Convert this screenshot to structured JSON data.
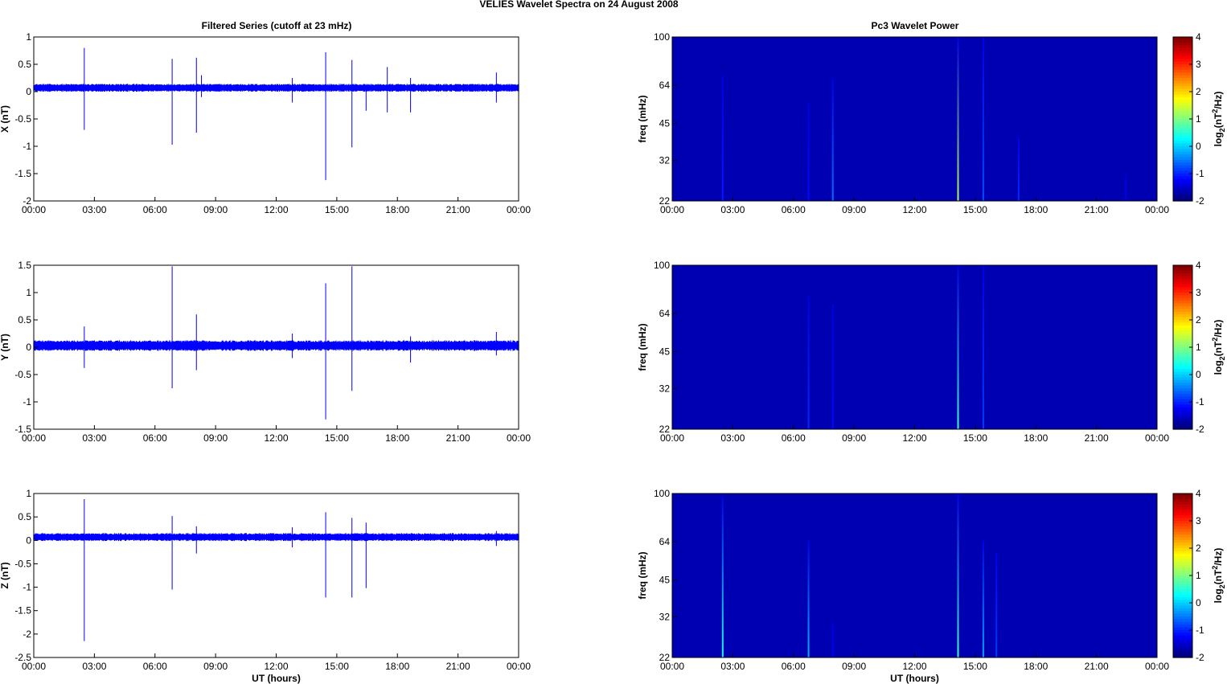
{
  "figure": {
    "title": "VELIES Wavelet Spectra on 24 August    2008",
    "left_title": "Filtered Series (cutoff at 23 mHz)",
    "right_title": "Pc3 Wavelet Power"
  },
  "chart_data": [
    {
      "type": "line",
      "name": "x-series",
      "ylabel": "X (nT)",
      "xlabel": "",
      "xlim": [
        0,
        24
      ],
      "ylim": [
        -2,
        1
      ],
      "yticks": [
        "1",
        "0.5",
        "0",
        "-0.5",
        "-1",
        "-1.5",
        "-2"
      ],
      "yticks_values": [
        1,
        0.5,
        0,
        -0.5,
        -1,
        -1.5,
        -2
      ],
      "xticks": [
        "00:00",
        "03:00",
        "06:00",
        "09:00",
        "12:00",
        "15:00",
        "18:00",
        "21:00",
        "00:00"
      ],
      "baseline": 0.07,
      "noise_amplitude": 0.06,
      "line_color": "#0000ff",
      "spikes": [
        {
          "t": 2.5,
          "max": 0.8,
          "min": -0.7
        },
        {
          "t": 6.85,
          "max": 0.6,
          "min": -0.97
        },
        {
          "t": 8.05,
          "max": 0.62,
          "min": -0.75
        },
        {
          "t": 8.3,
          "max": 0.3,
          "min": -0.1
        },
        {
          "t": 12.8,
          "max": 0.25,
          "min": -0.2
        },
        {
          "t": 14.45,
          "max": 0.72,
          "min": -1.62
        },
        {
          "t": 15.75,
          "max": 0.58,
          "min": -1.02
        },
        {
          "t": 16.45,
          "max": 0.1,
          "min": -0.35
        },
        {
          "t": 17.5,
          "max": 0.45,
          "min": -0.38
        },
        {
          "t": 18.65,
          "max": 0.25,
          "min": -0.38
        },
        {
          "t": 22.9,
          "max": 0.35,
          "min": -0.2
        }
      ]
    },
    {
      "type": "heatmap",
      "name": "x-wavelet",
      "ylabel": "freq (mHz)",
      "xlabel": "",
      "xlim": [
        0,
        24
      ],
      "ylim": [
        22,
        100
      ],
      "y_scale": "log",
      "yticks": [
        "100",
        "64",
        "45",
        "32",
        "22"
      ],
      "yticks_values": [
        100,
        64,
        45,
        32,
        22
      ],
      "xticks": [
        "00:00",
        "03:00",
        "06:00",
        "09:00",
        "12:00",
        "15:00",
        "18:00",
        "21:00",
        "00:00"
      ],
      "colorbar_label": "log2(nT2/Hz)",
      "colorbar_range": [
        -2,
        4
      ],
      "colorbar_ticks": [
        "4",
        "3",
        "2",
        "1",
        "0",
        "-1",
        "-2"
      ],
      "background_level": -1.7,
      "streaks": [
        {
          "t": 2.5,
          "level": -1.1,
          "fmax": 70
        },
        {
          "t": 6.75,
          "level": -1.2,
          "fmax": 55
        },
        {
          "t": 7.95,
          "level": -0.6,
          "fmax": 68
        },
        {
          "t": 14.15,
          "level": 1.3,
          "fmax": 100
        },
        {
          "t": 15.4,
          "level": -0.8,
          "fmax": 100
        },
        {
          "t": 17.15,
          "level": -1.0,
          "fmax": 40
        },
        {
          "t": 22.45,
          "level": -1.4,
          "fmax": 28
        }
      ]
    },
    {
      "type": "line",
      "name": "y-series",
      "ylabel": "Y (nT)",
      "xlabel": "",
      "xlim": [
        0,
        24
      ],
      "ylim": [
        -1.5,
        1.5
      ],
      "yticks": [
        "1.5",
        "1",
        "0.5",
        "0",
        "-0.5",
        "-1",
        "-1.5"
      ],
      "yticks_values": [
        1.5,
        1,
        0.5,
        0,
        -0.5,
        -1,
        -1.5
      ],
      "xticks": [
        "00:00",
        "03:00",
        "06:00",
        "09:00",
        "12:00",
        "15:00",
        "18:00",
        "21:00",
        "00:00"
      ],
      "baseline": 0.03,
      "noise_amplitude": 0.08,
      "line_color": "#0000ff",
      "spikes": [
        {
          "t": 2.5,
          "max": 0.38,
          "min": -0.38
        },
        {
          "t": 6.85,
          "max": 1.48,
          "min": -0.75
        },
        {
          "t": 8.05,
          "max": 0.6,
          "min": -0.42
        },
        {
          "t": 12.8,
          "max": 0.25,
          "min": -0.2
        },
        {
          "t": 14.45,
          "max": 1.17,
          "min": -1.32
        },
        {
          "t": 15.75,
          "max": 1.48,
          "min": -0.8
        },
        {
          "t": 18.65,
          "max": 0.2,
          "min": -0.28
        },
        {
          "t": 22.9,
          "max": 0.28,
          "min": -0.15
        }
      ]
    },
    {
      "type": "heatmap",
      "name": "y-wavelet",
      "ylabel": "freq (mHz)",
      "xlabel": "",
      "xlim": [
        0,
        24
      ],
      "ylim": [
        22,
        100
      ],
      "y_scale": "log",
      "yticks": [
        "100",
        "64",
        "45",
        "32",
        "22"
      ],
      "yticks_values": [
        100,
        64,
        45,
        32,
        22
      ],
      "xticks": [
        "00:00",
        "03:00",
        "06:00",
        "09:00",
        "12:00",
        "15:00",
        "18:00",
        "21:00",
        "00:00"
      ],
      "colorbar_label": "log2(nT2/Hz)",
      "colorbar_range": [
        -2,
        4
      ],
      "colorbar_ticks": [
        "4",
        "3",
        "2",
        "1",
        "0",
        "-1",
        "-2"
      ],
      "background_level": -1.7,
      "streaks": [
        {
          "t": 6.75,
          "level": -1.0,
          "fmax": 75
        },
        {
          "t": 7.95,
          "level": -1.2,
          "fmax": 70
        },
        {
          "t": 14.15,
          "level": 0.6,
          "fmax": 100
        },
        {
          "t": 15.4,
          "level": -0.9,
          "fmax": 100
        }
      ]
    },
    {
      "type": "line",
      "name": "z-series",
      "ylabel": "Z (nT)",
      "xlabel": "UT (hours)",
      "xlim": [
        0,
        24
      ],
      "ylim": [
        -2.5,
        1
      ],
      "yticks": [
        "1",
        "0.5",
        "0",
        "-0.5",
        "-1",
        "-1.5",
        "-2",
        "-2.5"
      ],
      "yticks_values": [
        1,
        0.5,
        0,
        -0.5,
        -1,
        -1.5,
        -2,
        -2.5
      ],
      "xticks": [
        "00:00",
        "03:00",
        "06:00",
        "09:00",
        "12:00",
        "15:00",
        "18:00",
        "21:00",
        "00:00"
      ],
      "baseline": 0.07,
      "noise_amplitude": 0.07,
      "line_color": "#0000ff",
      "spikes": [
        {
          "t": 2.5,
          "max": 0.88,
          "min": -2.15
        },
        {
          "t": 6.85,
          "max": 0.52,
          "min": -1.05
        },
        {
          "t": 8.05,
          "max": 0.3,
          "min": -0.28
        },
        {
          "t": 12.8,
          "max": 0.28,
          "min": -0.15
        },
        {
          "t": 14.45,
          "max": 0.6,
          "min": -1.22
        },
        {
          "t": 15.75,
          "max": 0.48,
          "min": -1.22
        },
        {
          "t": 16.45,
          "max": 0.38,
          "min": -1.02
        },
        {
          "t": 22.9,
          "max": 0.2,
          "min": -0.12
        }
      ]
    },
    {
      "type": "heatmap",
      "name": "z-wavelet",
      "ylabel": "freq (mHz)",
      "xlabel": "UT (hours)",
      "xlim": [
        0,
        24
      ],
      "ylim": [
        22,
        100
      ],
      "y_scale": "log",
      "yticks": [
        "100",
        "64",
        "45",
        "32",
        "22"
      ],
      "yticks_values": [
        100,
        64,
        45,
        32,
        22
      ],
      "xticks": [
        "00:00",
        "03:00",
        "06:00",
        "09:00",
        "12:00",
        "15:00",
        "18:00",
        "21:00",
        "00:00"
      ],
      "colorbar_label": "log2(nT2/Hz)",
      "colorbar_range": [
        -2,
        4
      ],
      "colorbar_ticks": [
        "4",
        "3",
        "2",
        "1",
        "0",
        "-1",
        "-2"
      ],
      "background_level": -1.7,
      "streaks": [
        {
          "t": 2.5,
          "level": 0.4,
          "fmax": 98
        },
        {
          "t": 6.75,
          "level": -0.2,
          "fmax": 65
        },
        {
          "t": 7.95,
          "level": -1.3,
          "fmax": 30
        },
        {
          "t": 14.15,
          "level": 0.6,
          "fmax": 100
        },
        {
          "t": 15.4,
          "level": -0.3,
          "fmax": 65
        },
        {
          "t": 16.05,
          "level": -0.9,
          "fmax": 58
        }
      ]
    }
  ]
}
